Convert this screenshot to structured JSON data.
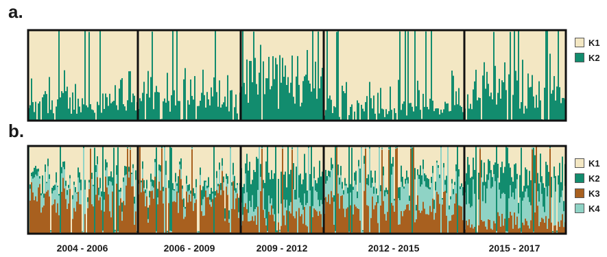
{
  "panels": [
    {
      "id": "a",
      "label": "a.",
      "legend": [
        "K1",
        "K2"
      ]
    },
    {
      "id": "b",
      "label": "b.",
      "legend": [
        "K1",
        "K2",
        "K3",
        "K4"
      ]
    }
  ],
  "periods": [
    "2004 - 2006",
    "2006 - 2009",
    "2009 - 2012",
    "2012 - 2015",
    "2015 - 2017"
  ],
  "colors": {
    "K1": "#f3e7c3",
    "K2": "#128c6e",
    "K3": "#a8601f",
    "K4": "#8fd3c5",
    "border": "#111111"
  },
  "chart_data": [
    {
      "type": "bar",
      "stacked": true,
      "title": "",
      "xlabel": "",
      "ylabel": "",
      "ylim": [
        0,
        1
      ],
      "categories": [
        "2004 - 2006",
        "2006 - 2009",
        "2009 - 2012",
        "2012 - 2015",
        "2015 - 2017"
      ],
      "series": [
        {
          "name": "K1",
          "values": [
            0.78,
            0.74,
            0.52,
            0.84,
            0.66
          ]
        },
        {
          "name": "K2",
          "values": [
            0.22,
            0.26,
            0.48,
            0.16,
            0.34
          ]
        }
      ]
    },
    {
      "type": "bar",
      "stacked": true,
      "title": "",
      "xlabel": "",
      "ylabel": "",
      "ylim": [
        0,
        1
      ],
      "categories": [
        "2004 - 2006",
        "2006 - 2009",
        "2009 - 2012",
        "2012 - 2015",
        "2015 - 2017"
      ],
      "series": [
        {
          "name": "K1",
          "values": [
            0.42,
            0.4,
            0.32,
            0.4,
            0.3
          ]
        },
        {
          "name": "K2",
          "values": [
            0.06,
            0.08,
            0.3,
            0.08,
            0.22
          ]
        },
        {
          "name": "K3",
          "values": [
            0.36,
            0.42,
            0.2,
            0.3,
            0.14
          ]
        },
        {
          "name": "K4",
          "values": [
            0.16,
            0.1,
            0.18,
            0.22,
            0.34
          ]
        }
      ]
    }
  ]
}
